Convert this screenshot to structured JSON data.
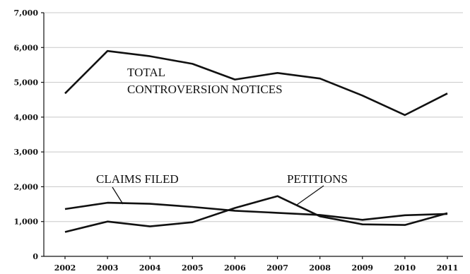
{
  "chart_data": {
    "type": "line",
    "categories": [
      "2002",
      "2003",
      "2004",
      "2005",
      "2006",
      "2007",
      "2008",
      "2009",
      "2010",
      "2011"
    ],
    "ylim": [
      0,
      7000
    ],
    "yticks": [
      0,
      1000,
      2000,
      3000,
      4000,
      5000,
      6000,
      7000
    ],
    "ytick_labels": [
      "0",
      "1,000",
      "2,000",
      "3,000",
      "4,000",
      "5,000",
      "6,000",
      "7,000"
    ],
    "grid": true,
    "series": [
      {
        "name": "TOTAL CONTROVERSION NOTICES",
        "values": [
          4680,
          5900,
          5750,
          5530,
          5080,
          5270,
          5110,
          4620,
          4060,
          4680
        ]
      },
      {
        "name": "CLAIMS FILED",
        "values": [
          1360,
          1540,
          1510,
          1420,
          1310,
          1250,
          1190,
          1050,
          1180,
          1220
        ]
      },
      {
        "name": "PETITIONS",
        "values": [
          700,
          1000,
          860,
          980,
          1390,
          1730,
          1150,
          920,
          900,
          1240
        ]
      }
    ],
    "annotations": {
      "total_line1": "TOTAL",
      "total_line2": "CONTROVERSION NOTICES",
      "claims": "CLAIMS FILED",
      "petitions": "PETITIONS"
    }
  }
}
